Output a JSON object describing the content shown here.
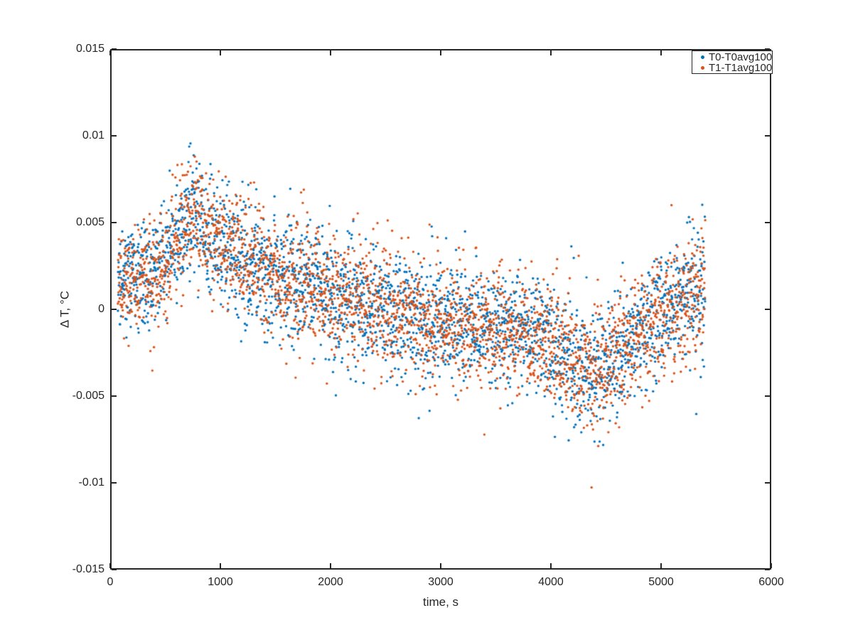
{
  "figure": {
    "background": "#ffffff"
  },
  "chart_data": {
    "type": "scatter",
    "title": "",
    "xlabel": "time, s",
    "ylabel": "Δ T, °C",
    "xlim": [
      0,
      6000
    ],
    "ylim": [
      -0.015,
      0.015
    ],
    "grid": false,
    "axis_color": "#262626",
    "background_color": "#ffffff",
    "x_tick_labels": [
      "0",
      "1000",
      "2000",
      "3000",
      "4000",
      "5000",
      "6000"
    ],
    "x_tick_values": [
      0,
      1000,
      2000,
      3000,
      4000,
      5000,
      6000
    ],
    "y_tick_labels": [
      "-0.015",
      "-0.01",
      "-0.005",
      "0",
      "0.005",
      "0.01",
      "0.015"
    ],
    "y_tick_values": [
      -0.015,
      -0.01,
      -0.005,
      0,
      0.005,
      0.01,
      0.015
    ],
    "legend": {
      "position": "northeast"
    },
    "series": [
      {
        "name": "T0-T0avg100",
        "color": "#0072BD",
        "marker": "filled-dot",
        "marker_radius_px": 1.7,
        "n_points_estimate": 2700,
        "x_data_range": [
          70,
          5400
        ],
        "seed": 20,
        "trend_mean_points": [
          [
            70,
            0.0015
          ],
          [
            250,
            0.0018
          ],
          [
            420,
            0.0021
          ],
          [
            550,
            0.0033
          ],
          [
            650,
            0.0047
          ],
          [
            740,
            0.0058
          ],
          [
            830,
            0.005
          ],
          [
            950,
            0.0038
          ],
          [
            1100,
            0.0035
          ],
          [
            1250,
            0.0028
          ],
          [
            1450,
            0.0021
          ],
          [
            1650,
            0.0017
          ],
          [
            1850,
            0.0011
          ],
          [
            2050,
            0.0006
          ],
          [
            2300,
            0.0004
          ],
          [
            2550,
            0.0
          ],
          [
            2800,
            -0.0007
          ],
          [
            3100,
            -0.0009
          ],
          [
            3400,
            -0.0011
          ],
          [
            3700,
            -0.0011
          ],
          [
            3950,
            -0.0016
          ],
          [
            4150,
            -0.0027
          ],
          [
            4350,
            -0.0035
          ],
          [
            4500,
            -0.0032
          ],
          [
            4650,
            -0.0023
          ],
          [
            4800,
            -0.0014
          ],
          [
            4950,
            -0.0008
          ],
          [
            5100,
            0.0001
          ],
          [
            5250,
            0.0006
          ],
          [
            5400,
            0.0012
          ]
        ],
        "noise_sigma_points": [
          [
            70,
            0.0014
          ],
          [
            500,
            0.0016
          ],
          [
            800,
            0.0017
          ],
          [
            1500,
            0.0017
          ],
          [
            2200,
            0.0018
          ],
          [
            3000,
            0.0017
          ],
          [
            3800,
            0.0017
          ],
          [
            4400,
            0.0019
          ],
          [
            4800,
            0.0016
          ],
          [
            5150,
            0.0018
          ],
          [
            5400,
            0.002
          ]
        ]
      },
      {
        "name": "T1-T1avg100",
        "color": "#D95319",
        "marker": "filled-dot",
        "marker_radius_px": 1.7,
        "n_points_estimate": 2700,
        "x_data_range": [
          70,
          5400
        ],
        "seed": 77,
        "trend_mean_points": [
          [
            70,
            0.0015
          ],
          [
            250,
            0.0018
          ],
          [
            420,
            0.0021
          ],
          [
            550,
            0.0033
          ],
          [
            650,
            0.0047
          ],
          [
            740,
            0.0058
          ],
          [
            830,
            0.005
          ],
          [
            950,
            0.0038
          ],
          [
            1100,
            0.0035
          ],
          [
            1250,
            0.0028
          ],
          [
            1450,
            0.0021
          ],
          [
            1650,
            0.0017
          ],
          [
            1850,
            0.0011
          ],
          [
            2050,
            0.0006
          ],
          [
            2300,
            0.0004
          ],
          [
            2550,
            0.0
          ],
          [
            2800,
            -0.0007
          ],
          [
            3100,
            -0.0009
          ],
          [
            3400,
            -0.0011
          ],
          [
            3700,
            -0.0011
          ],
          [
            3950,
            -0.0016
          ],
          [
            4150,
            -0.0027
          ],
          [
            4350,
            -0.0035
          ],
          [
            4500,
            -0.0032
          ],
          [
            4650,
            -0.0023
          ],
          [
            4800,
            -0.0014
          ],
          [
            4950,
            -0.0008
          ],
          [
            5100,
            0.0001
          ],
          [
            5250,
            0.0006
          ],
          [
            5400,
            0.0012
          ]
        ],
        "noise_sigma_points": [
          [
            70,
            0.0014
          ],
          [
            500,
            0.0016
          ],
          [
            800,
            0.0017
          ],
          [
            1500,
            0.0017
          ],
          [
            2200,
            0.0018
          ],
          [
            3000,
            0.0017
          ],
          [
            3800,
            0.0017
          ],
          [
            4400,
            0.0019
          ],
          [
            4800,
            0.0016
          ],
          [
            5150,
            0.0018
          ],
          [
            5400,
            0.002
          ]
        ]
      }
    ]
  }
}
